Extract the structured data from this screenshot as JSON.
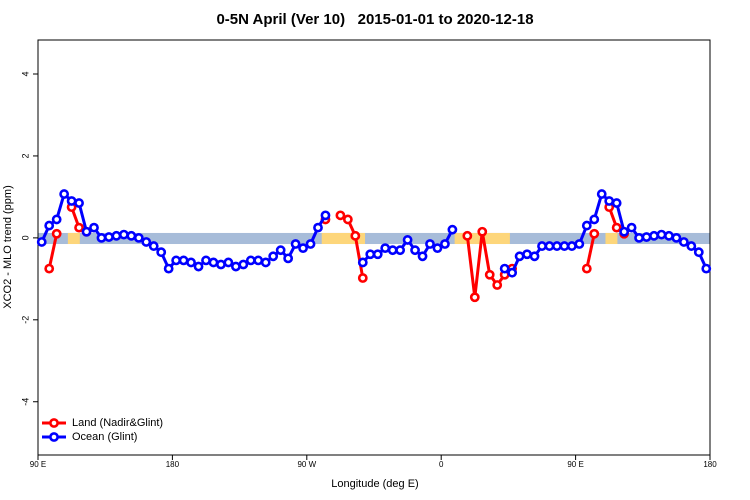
{
  "chart_data": {
    "type": "line",
    "title": "0-5N April (Ver 10)   2015-01-01 to 2020-12-18",
    "xlabel": "Longitude (deg E)",
    "ylabel": "XCO2 - MLO trend (ppm)",
    "xlim": [
      90,
      540
    ],
    "ylim": [
      -5.3,
      4.83
    ],
    "xticks": [
      {
        "value": 90,
        "label": "90 E"
      },
      180,
      {
        "value": 270,
        "label": "90 W"
      },
      {
        "value": 360,
        "label": "0"
      },
      {
        "value": 450,
        "label": "90 E"
      },
      {
        "value": 540,
        "label": "180"
      }
    ],
    "yticks": [
      -4,
      -2,
      0,
      2,
      4
    ],
    "legend": "bottom-left",
    "band": {
      "ylim": [
        -0.15,
        0.12
      ],
      "color": "#a7bcd9",
      "land_color": "#fdd67b",
      "land_spans": [
        [
          110,
          118
        ],
        [
          280,
          309
        ],
        [
          369,
          406
        ],
        [
          470,
          478
        ]
      ]
    },
    "x": [
      92.5,
      97.5,
      102.5,
      107.5,
      112.5,
      117.5,
      122.5,
      127.5,
      132.5,
      137.5,
      142.5,
      147.5,
      152.5,
      157.5,
      162.5,
      167.5,
      172.5,
      177.5,
      182.5,
      187.5,
      192.5,
      197.5,
      202.5,
      207.5,
      212.5,
      217.5,
      222.5,
      227.5,
      232.5,
      237.5,
      242.5,
      247.5,
      252.5,
      257.5,
      262.5,
      267.5,
      272.5,
      277.5,
      282.5,
      287.5,
      292.5,
      297.5,
      302.5,
      307.5,
      312.5,
      317.5,
      322.5,
      327.5,
      332.5,
      337.5,
      342.5,
      347.5,
      352.5,
      357.5,
      362.5,
      367.5,
      372.5,
      377.5,
      382.5,
      387.5,
      392.5,
      397.5,
      402.5,
      407.5,
      412.5,
      417.5,
      422.5,
      427.5,
      432.5,
      437.5,
      442.5,
      447.5,
      452.5,
      457.5,
      462.5,
      467.5,
      472.5,
      477.5,
      482.5,
      487.5,
      492.5,
      497.5,
      502.5,
      507.5,
      512.5,
      517.5,
      522.5,
      527.5,
      532.5,
      537.5
    ],
    "series": [
      {
        "name": "Land (Nadir&Glint)",
        "color": "#ff0000",
        "values": [
          null,
          -0.75,
          0.1,
          null,
          0.75,
          0.25,
          0.15,
          null,
          null,
          null,
          null,
          null,
          null,
          null,
          null,
          null,
          null,
          null,
          null,
          null,
          null,
          null,
          null,
          null,
          null,
          null,
          null,
          null,
          null,
          null,
          null,
          null,
          null,
          null,
          null,
          null,
          null,
          null,
          0.45,
          null,
          0.55,
          0.45,
          0.05,
          -0.98,
          null,
          null,
          null,
          null,
          null,
          null,
          null,
          null,
          null,
          null,
          null,
          null,
          null,
          0.05,
          -1.45,
          0.15,
          -0.9,
          -1.15,
          -0.9,
          -0.75,
          null,
          null,
          null,
          null,
          null,
          null,
          null,
          null,
          null,
          -0.75,
          0.1,
          null,
          0.75,
          0.25,
          0.1,
          null,
          null,
          null,
          null,
          null,
          null,
          null,
          null,
          null,
          null,
          null
        ]
      },
      {
        "name": "Ocean (Glint)",
        "color": "#0000ff",
        "values": [
          -0.1,
          0.3,
          0.45,
          1.07,
          0.9,
          0.85,
          0.15,
          0.25,
          0,
          0.02,
          0.05,
          0.08,
          0.05,
          0,
          -0.1,
          -0.2,
          -0.35,
          -0.75,
          -0.55,
          -0.55,
          -0.6,
          -0.7,
          -0.55,
          -0.6,
          -0.65,
          -0.6,
          -0.7,
          -0.65,
          -0.55,
          -0.55,
          -0.6,
          -0.45,
          -0.3,
          -0.5,
          -0.15,
          -0.25,
          -0.15,
          0.25,
          0.55,
          null,
          null,
          null,
          null,
          -0.6,
          -0.4,
          -0.4,
          -0.25,
          -0.3,
          -0.3,
          -0.05,
          -0.3,
          -0.45,
          -0.15,
          -0.25,
          -0.15,
          0.2,
          null,
          null,
          null,
          null,
          null,
          null,
          -0.75,
          -0.85,
          -0.45,
          -0.4,
          -0.45,
          -0.2,
          -0.2,
          -0.2,
          -0.2,
          -0.2,
          -0.15,
          0.3,
          0.45,
          1.07,
          0.9,
          0.85,
          0.15,
          0.25,
          0,
          0.02,
          0.05,
          0.08,
          0.05,
          0,
          -0.1,
          -0.2,
          -0.35,
          -0.75
        ]
      }
    ]
  }
}
